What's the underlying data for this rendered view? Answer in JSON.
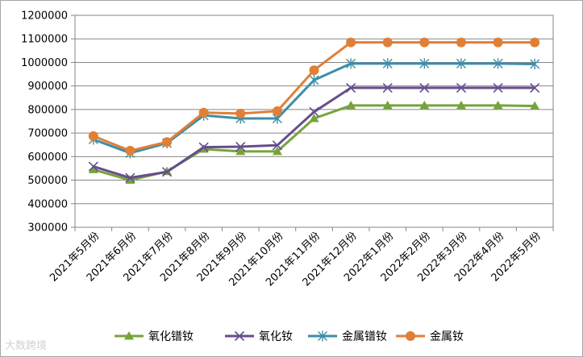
{
  "chart_data": {
    "type": "line",
    "categories": [
      "2021年5月份",
      "2021年6月份",
      "2021年7月份",
      "2021年8月份",
      "2021年9月份",
      "2021年10月份",
      "2021年11月份",
      "2021年12月份",
      "2022年1月份",
      "2022年2月份",
      "2022年3月份",
      "2022年4月份",
      "2022年5月份"
    ],
    "yticks": [
      300000,
      400000,
      500000,
      600000,
      700000,
      800000,
      900000,
      1000000,
      1100000,
      1200000
    ],
    "ylim": [
      300000,
      1200000
    ],
    "grid": true,
    "legend_position": "bottom",
    "series": [
      {
        "name": "氧化镨钕",
        "color": "#77a33c",
        "marker": "triangle",
        "values": [
          545000,
          500000,
          537000,
          632000,
          622000,
          622000,
          762000,
          817000,
          817000,
          817000,
          817000,
          817000,
          815000
        ]
      },
      {
        "name": "氧化钕",
        "color": "#674c8f",
        "marker": "x",
        "values": [
          558000,
          510000,
          535000,
          640000,
          642000,
          648000,
          790000,
          892000,
          892000,
          892000,
          892000,
          892000,
          892000
        ]
      },
      {
        "name": "金属镨钕",
        "color": "#3d8ea8",
        "marker": "star",
        "values": [
          673000,
          615000,
          657000,
          775000,
          762000,
          762000,
          925000,
          995000,
          995000,
          995000,
          995000,
          995000,
          993000
        ]
      },
      {
        "name": "金属钕",
        "color": "#e07f37",
        "marker": "circle",
        "values": [
          687000,
          625000,
          662000,
          787000,
          783000,
          793000,
          967000,
          1085000,
          1085000,
          1085000,
          1085000,
          1085000,
          1085000
        ]
      }
    ]
  },
  "watermark": "大数跨境"
}
